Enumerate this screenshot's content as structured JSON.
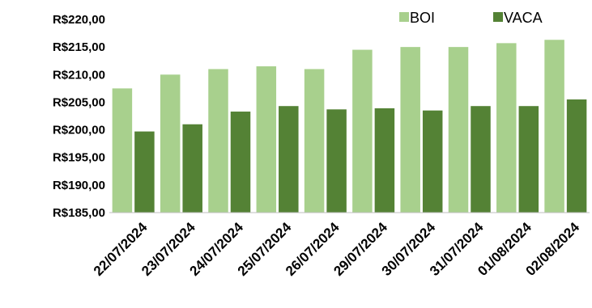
{
  "chart_data": {
    "type": "bar",
    "title": "",
    "xlabel": "",
    "ylabel": "",
    "categories": [
      "22/07/2024",
      "23/07/2024",
      "24/07/2024",
      "25/07/2024",
      "26/07/2024",
      "29/07/2024",
      "30/07/2024",
      "31/07/2024",
      "01/08/2024",
      "02/08/2024"
    ],
    "series": [
      {
        "name": "BOI",
        "color": "#a8d08d",
        "values": [
          207.5,
          210.0,
          211.0,
          211.5,
          211.0,
          214.5,
          215.0,
          215.0,
          215.7,
          216.3
        ]
      },
      {
        "name": "VACA",
        "color": "#548235",
        "values": [
          199.7,
          201.0,
          203.3,
          204.3,
          203.7,
          203.9,
          203.5,
          204.3,
          204.3,
          205.5
        ]
      }
    ],
    "ylim": [
      185,
      220
    ],
    "ytick_labels": [
      "R$220,00",
      "R$215,00",
      "R$210,00",
      "R$205,00",
      "R$200,00",
      "R$195,00",
      "R$190,00",
      "R$185,00"
    ],
    "grid": false,
    "legend_position": "top-right"
  }
}
